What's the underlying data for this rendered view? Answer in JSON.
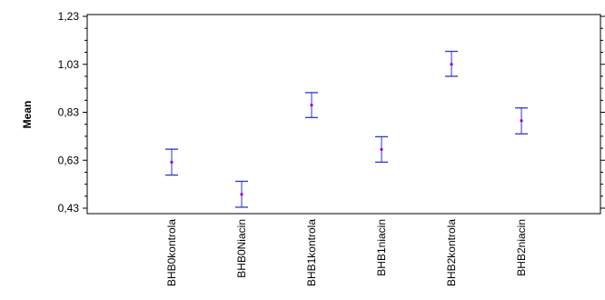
{
  "chart_data": {
    "type": "scatter",
    "title": "",
    "xlabel": "",
    "ylabel": "Mean",
    "ylim": [
      0.43,
      1.23
    ],
    "yticks": [
      0.43,
      0.63,
      0.83,
      1.03,
      1.23
    ],
    "ytick_labels": [
      "0,43",
      "0,63",
      "0,83",
      "1,03",
      "1,23"
    ],
    "categories": [
      "BHB0kontrola",
      "BHB0Niacin",
      "BHB1kontrola",
      "BHB1niacin",
      "BHB2kontrola",
      "BHB2niacin"
    ],
    "series": [
      {
        "mean": [
          0.622,
          0.488,
          0.86,
          0.675,
          1.03,
          0.795
        ],
        "lower": [
          0.568,
          0.434,
          0.808,
          0.622,
          0.98,
          0.74
        ],
        "upper": [
          0.676,
          0.542,
          0.912,
          0.728,
          1.084,
          0.848
        ]
      }
    ],
    "error_bar_color": "#3333cc",
    "point_color": "#9900cc",
    "grid": false
  }
}
